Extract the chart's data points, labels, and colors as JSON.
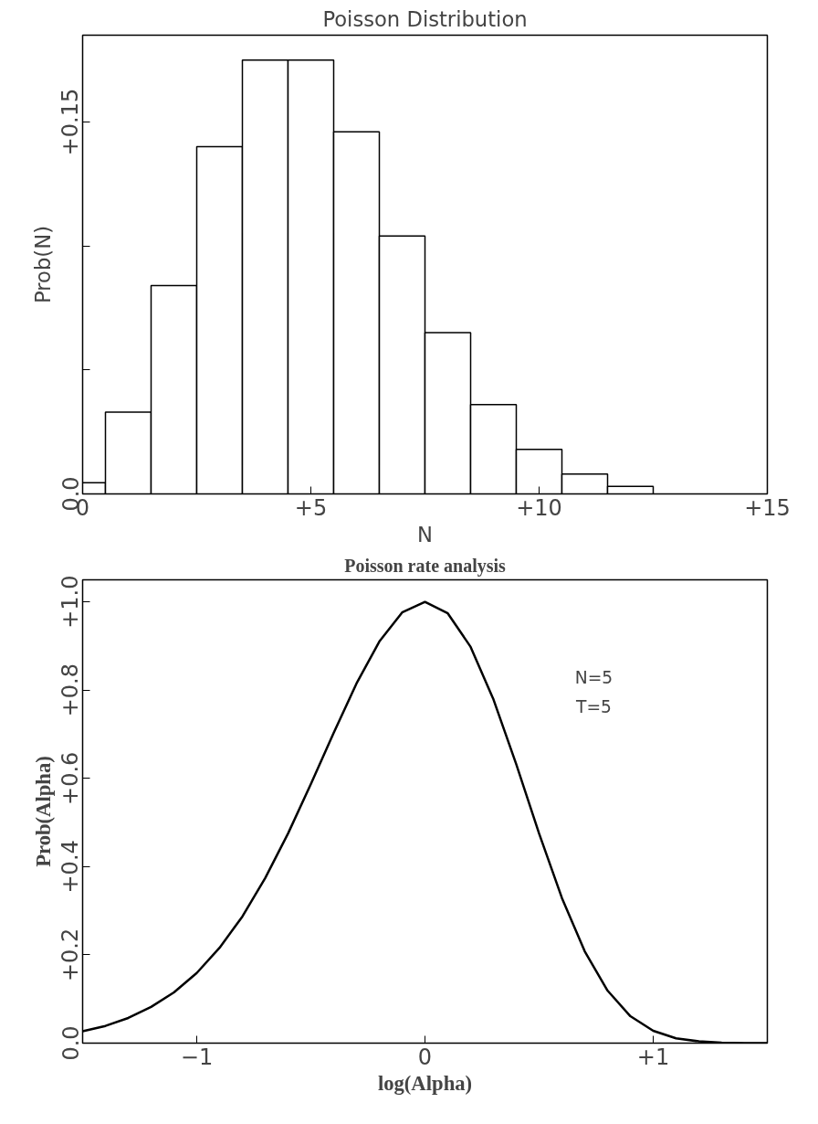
{
  "chart_data": [
    {
      "type": "histogram",
      "title": "Poisson Distribution",
      "xlabel": "N",
      "ylabel": "Prob(N)",
      "bins": [
        0,
        0.5,
        1.5,
        2.5,
        3.5,
        4.5,
        5.5,
        6.5,
        7.5,
        8.5,
        9.5,
        10.5,
        11.5,
        12.5
      ],
      "values": [
        0.0045,
        0.033,
        0.084,
        0.14,
        0.175,
        0.175,
        0.146,
        0.104,
        0.065,
        0.036,
        0.018,
        0.008,
        0.003
      ],
      "color": "#000000",
      "xlim": [
        0,
        15
      ],
      "ylim": [
        0,
        0.185
      ],
      "xticks": [
        {
          "value": 0,
          "label": "0"
        },
        {
          "value": 5,
          "label": "+5"
        },
        {
          "value": 10,
          "label": "+10"
        },
        {
          "value": 15,
          "label": "+15"
        }
      ],
      "yticks": [
        {
          "value": 0,
          "label": "0.0"
        },
        {
          "value": 0.05,
          "label": null
        },
        {
          "value": 0.1,
          "label": null
        },
        {
          "value": 0.15,
          "label": "+0.15"
        }
      ],
      "grid": false
    },
    {
      "type": "line",
      "title": "Poisson rate analysis",
      "xlabel": "log(Alpha)",
      "ylabel": "Prob(Alpha)",
      "x": [
        -1.5,
        -1.4,
        -1.3,
        -1.2,
        -1.1,
        -1.0,
        -0.9,
        -0.8,
        -0.7,
        -0.6,
        -0.5,
        -0.4,
        -0.3,
        -0.2,
        -0.1,
        0,
        0.1,
        0.2,
        0.3,
        0.4,
        0.5,
        0.6,
        0.7,
        0.8,
        0.9,
        1.0,
        1.1,
        1.2,
        1.3,
        1.4,
        1.5
      ],
      "series": [
        {
          "color": "#000000",
          "values": [
            0.027,
            0.039,
            0.057,
            0.082,
            0.115,
            0.159,
            0.216,
            0.287,
            0.374,
            0.475,
            0.587,
            0.703,
            0.815,
            0.91,
            0.976,
            1.0,
            0.974,
            0.898,
            0.779,
            0.632,
            0.475,
            0.329,
            0.208,
            0.119,
            0.061,
            0.028,
            0.011,
            0.004,
            0.001,
            0.0,
            0.0
          ]
        }
      ],
      "xlim": [
        -1.5,
        1.5
      ],
      "ylim": [
        0,
        1.05
      ],
      "xticks": [
        {
          "value": -1,
          "label": "−1"
        },
        {
          "value": 0,
          "label": "0"
        },
        {
          "value": 1,
          "label": "+1"
        }
      ],
      "yticks": [
        {
          "value": 0,
          "label": "0.0"
        },
        {
          "value": 0.2,
          "label": "+0.2"
        },
        {
          "value": 0.4,
          "label": "+0.4"
        },
        {
          "value": 0.6,
          "label": "+0.6"
        },
        {
          "value": 0.8,
          "label": "+0.8"
        },
        {
          "value": 1.0,
          "label": "+1.0"
        }
      ],
      "grid": false,
      "line_style": "solid",
      "marker": "none",
      "annotations": [
        "N=5",
        "T=5"
      ]
    }
  ]
}
